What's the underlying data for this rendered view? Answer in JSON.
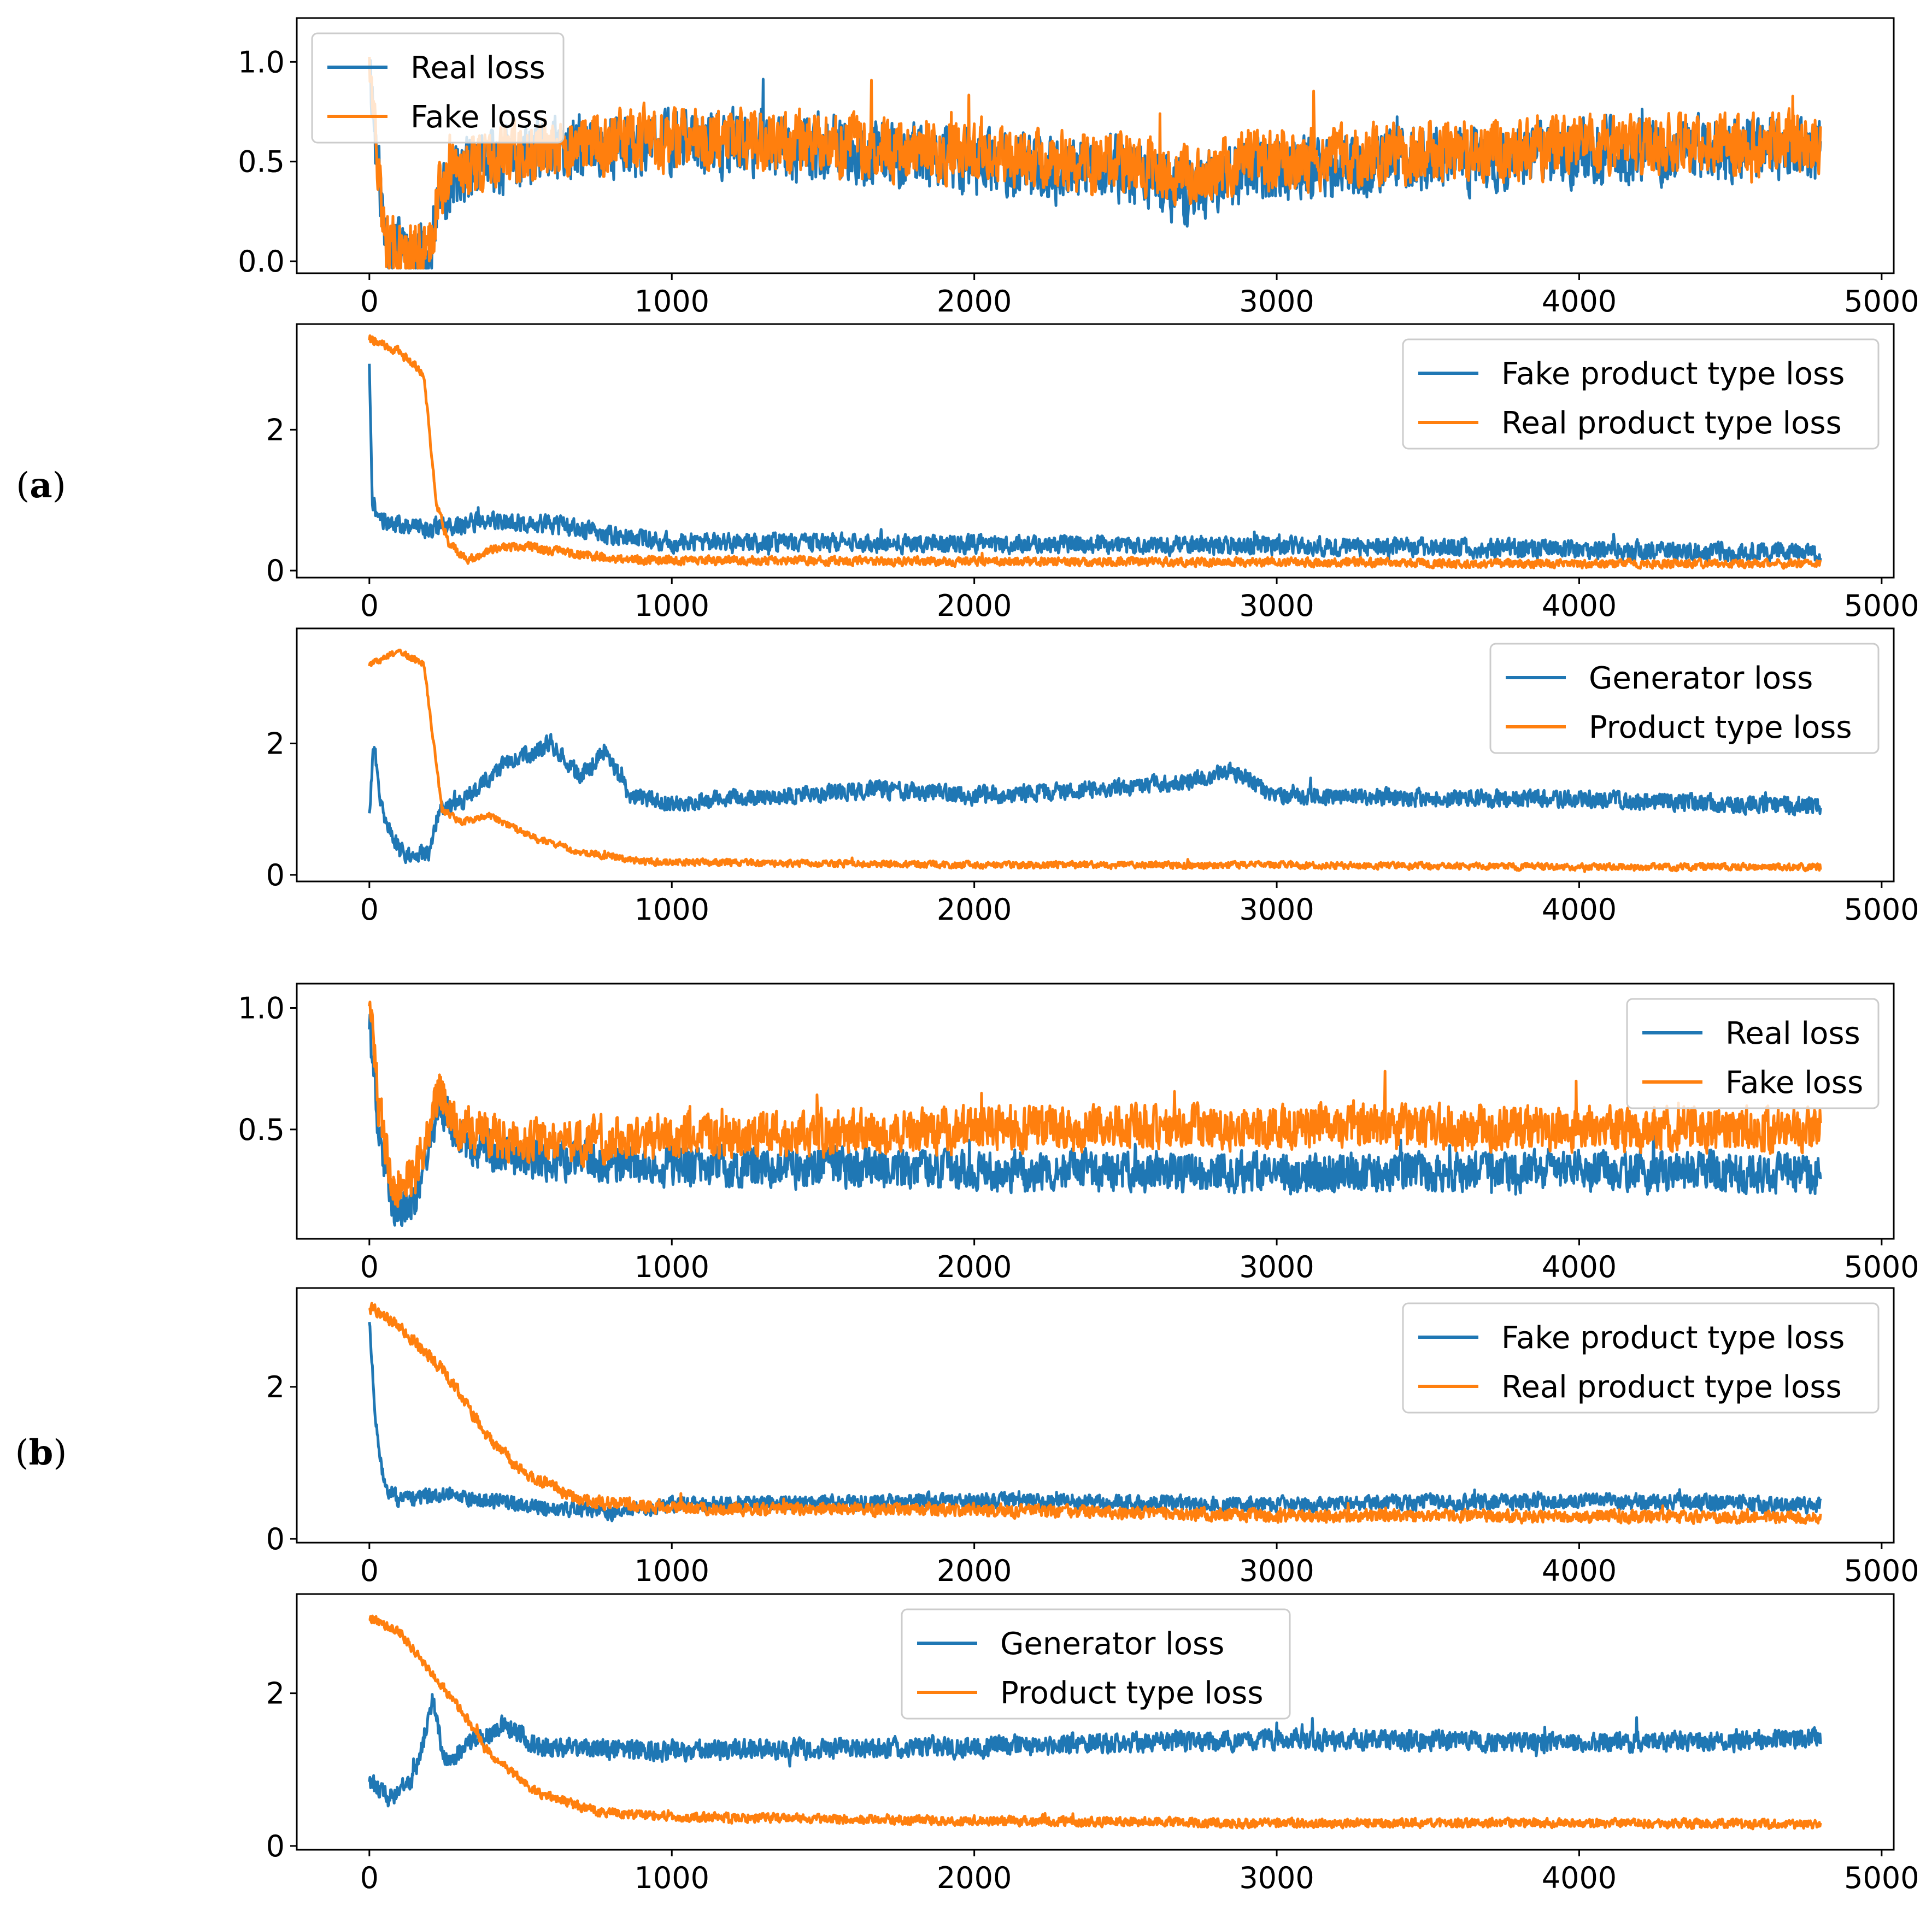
{
  "figure": {
    "panel_labels": [
      {
        "letter": "a",
        "open": "(",
        "close": ")"
      },
      {
        "letter": "b",
        "open": "(",
        "close": ")"
      }
    ],
    "colors": {
      "blue": "#1f77b4",
      "orange": "#ff7f0e",
      "axis": "#000000"
    }
  },
  "chart_data": [
    {
      "type": "line",
      "panel": "a",
      "xlim": [
        -240,
        5040
      ],
      "ylim": [
        -0.06,
        1.22
      ],
      "xticks": [
        0,
        1000,
        2000,
        3000,
        4000,
        5000
      ],
      "yticks": [
        0.0,
        0.5,
        1.0
      ],
      "ytick_decimals": 1,
      "legend": {
        "position": "upper-left"
      },
      "series": [
        {
          "name": "Real loss",
          "color": "#1f77b4",
          "n": 4800,
          "points": [
            [
              0,
              1.05
            ],
            [
              20,
              0.6
            ],
            [
              50,
              0.15
            ],
            [
              100,
              0.05
            ],
            [
              150,
              0.03
            ],
            [
              200,
              0.05
            ],
            [
              230,
              0.3
            ],
            [
              300,
              0.45
            ],
            [
              500,
              0.52
            ],
            [
              800,
              0.58
            ],
            [
              1200,
              0.6
            ],
            [
              1600,
              0.55
            ],
            [
              2000,
              0.5
            ],
            [
              2300,
              0.45
            ],
            [
              2500,
              0.45
            ],
            [
              2700,
              0.35
            ],
            [
              2900,
              0.45
            ],
            [
              3500,
              0.5
            ],
            [
              4000,
              0.55
            ],
            [
              4780,
              0.56
            ]
          ],
          "noise": 0.16,
          "seed": 11
        },
        {
          "name": "Fake loss",
          "color": "#ff7f0e",
          "n": 4800,
          "points": [
            [
              0,
              1.1
            ],
            [
              20,
              0.6
            ],
            [
              50,
              0.12
            ],
            [
              100,
              0.04
            ],
            [
              150,
              0.03
            ],
            [
              200,
              0.05
            ],
            [
              230,
              0.35
            ],
            [
              300,
              0.45
            ],
            [
              500,
              0.55
            ],
            [
              800,
              0.6
            ],
            [
              1200,
              0.62
            ],
            [
              1600,
              0.58
            ],
            [
              2000,
              0.55
            ],
            [
              2300,
              0.5
            ],
            [
              2500,
              0.5
            ],
            [
              2700,
              0.42
            ],
            [
              2900,
              0.5
            ],
            [
              3500,
              0.55
            ],
            [
              4000,
              0.58
            ],
            [
              4780,
              0.6
            ]
          ],
          "noise": 0.15,
          "seed": 12
        }
      ]
    },
    {
      "type": "line",
      "panel": "a",
      "xlim": [
        -240,
        5040
      ],
      "ylim": [
        -0.1,
        3.5
      ],
      "xticks": [
        0,
        1000,
        2000,
        3000,
        4000,
        5000
      ],
      "yticks": [
        0,
        2
      ],
      "ytick_decimals": 0,
      "legend": {
        "position": "upper-right"
      },
      "series": [
        {
          "name": "Fake product type loss",
          "color": "#1f77b4",
          "n": 4800,
          "points": [
            [
              0,
              3.0
            ],
            [
              10,
              1.0
            ],
            [
              30,
              0.75
            ],
            [
              100,
              0.65
            ],
            [
              200,
              0.6
            ],
            [
              400,
              0.7
            ],
            [
              600,
              0.65
            ],
            [
              800,
              0.5
            ],
            [
              1000,
              0.4
            ],
            [
              2000,
              0.38
            ],
            [
              3000,
              0.35
            ],
            [
              4000,
              0.3
            ],
            [
              4780,
              0.25
            ]
          ],
          "noise": 0.13,
          "seed": 21
        },
        {
          "name": "Real product type loss",
          "color": "#ff7f0e",
          "n": 4800,
          "points": [
            [
              0,
              3.3
            ],
            [
              100,
              3.1
            ],
            [
              180,
              2.8
            ],
            [
              220,
              1.0
            ],
            [
              260,
              0.4
            ],
            [
              320,
              0.15
            ],
            [
              400,
              0.3
            ],
            [
              500,
              0.35
            ],
            [
              700,
              0.22
            ],
            [
              900,
              0.15
            ],
            [
              2000,
              0.13
            ],
            [
              3000,
              0.12
            ],
            [
              4000,
              0.1
            ],
            [
              4780,
              0.1
            ]
          ],
          "noise": 0.06,
          "seed": 22
        }
      ]
    },
    {
      "type": "line",
      "panel": "a",
      "xlim": [
        -240,
        5040
      ],
      "ylim": [
        -0.1,
        3.75
      ],
      "xticks": [
        0,
        1000,
        2000,
        3000,
        4000,
        5000
      ],
      "yticks": [
        0,
        2
      ],
      "ytick_decimals": 0,
      "legend": {
        "position": "upper-right"
      },
      "series": [
        {
          "name": "Generator loss",
          "color": "#1f77b4",
          "n": 4800,
          "points": [
            [
              0,
              1.0
            ],
            [
              15,
              2.0
            ],
            [
              40,
              1.0
            ],
            [
              100,
              0.35
            ],
            [
              200,
              0.3
            ],
            [
              230,
              1.0
            ],
            [
              300,
              1.1
            ],
            [
              450,
              1.7
            ],
            [
              600,
              2.0
            ],
            [
              700,
              1.5
            ],
            [
              780,
              1.9
            ],
            [
              860,
              1.2
            ],
            [
              1000,
              1.1
            ],
            [
              1700,
              1.3
            ],
            [
              2000,
              1.2
            ],
            [
              2700,
              1.4
            ],
            [
              2850,
              1.6
            ],
            [
              3000,
              1.2
            ],
            [
              4000,
              1.15
            ],
            [
              4780,
              1.05
            ]
          ],
          "noise": 0.13,
          "seed": 31
        },
        {
          "name": "Product type loss",
          "color": "#ff7f0e",
          "n": 4800,
          "points": [
            [
              0,
              3.2
            ],
            [
              100,
              3.4
            ],
            [
              180,
              3.2
            ],
            [
              240,
              1.0
            ],
            [
              300,
              0.8
            ],
            [
              400,
              0.9
            ],
            [
              550,
              0.55
            ],
            [
              700,
              0.35
            ],
            [
              900,
              0.2
            ],
            [
              2000,
              0.15
            ],
            [
              3000,
              0.15
            ],
            [
              4000,
              0.12
            ],
            [
              4780,
              0.12
            ]
          ],
          "noise": 0.05,
          "seed": 32
        }
      ]
    },
    {
      "type": "line",
      "panel": "b",
      "xlim": [
        -240,
        5040
      ],
      "ylim": [
        0.05,
        1.1
      ],
      "xticks": [
        0,
        1000,
        2000,
        3000,
        4000,
        5000
      ],
      "yticks": [
        0.5,
        1.0
      ],
      "ytick_decimals": 1,
      "legend": {
        "position": "upper-right"
      },
      "series": [
        {
          "name": "Real loss",
          "color": "#1f77b4",
          "n": 4800,
          "points": [
            [
              0,
              0.95
            ],
            [
              30,
              0.5
            ],
            [
              80,
              0.15
            ],
            [
              150,
              0.2
            ],
            [
              230,
              0.6
            ],
            [
              300,
              0.45
            ],
            [
              500,
              0.38
            ],
            [
              1000,
              0.35
            ],
            [
              2000,
              0.33
            ],
            [
              3000,
              0.32
            ],
            [
              4000,
              0.33
            ],
            [
              4780,
              0.32
            ]
          ],
          "noise": 0.08,
          "seed": 41
        },
        {
          "name": "Fake loss",
          "color": "#ff7f0e",
          "n": 4800,
          "points": [
            [
              0,
              1.05
            ],
            [
              30,
              0.6
            ],
            [
              80,
              0.25
            ],
            [
              150,
              0.3
            ],
            [
              230,
              0.65
            ],
            [
              300,
              0.5
            ],
            [
              500,
              0.45
            ],
            [
              1000,
              0.47
            ],
            [
              2000,
              0.5
            ],
            [
              3000,
              0.52
            ],
            [
              4000,
              0.5
            ],
            [
              4780,
              0.5
            ]
          ],
          "noise": 0.09,
          "seed": 42
        }
      ]
    },
    {
      "type": "line",
      "panel": "b",
      "xlim": [
        -240,
        5040
      ],
      "ylim": [
        -0.05,
        3.3
      ],
      "xticks": [
        0,
        1000,
        2000,
        3000,
        4000,
        5000
      ],
      "yticks": [
        0,
        2
      ],
      "ytick_decimals": 0,
      "legend": {
        "position": "upper-right"
      },
      "series": [
        {
          "name": "Fake product type loss",
          "color": "#1f77b4",
          "n": 4800,
          "points": [
            [
              0,
              2.9
            ],
            [
              20,
              1.5
            ],
            [
              50,
              0.7
            ],
            [
              100,
              0.5
            ],
            [
              250,
              0.6
            ],
            [
              400,
              0.5
            ],
            [
              600,
              0.4
            ],
            [
              800,
              0.35
            ],
            [
              1000,
              0.45
            ],
            [
              2000,
              0.5
            ],
            [
              3000,
              0.45
            ],
            [
              4000,
              0.5
            ],
            [
              4780,
              0.45
            ]
          ],
          "noise": 0.1,
          "seed": 51
        },
        {
          "name": "Real product type loss",
          "color": "#ff7f0e",
          "n": 4800,
          "points": [
            [
              0,
              3.05
            ],
            [
              100,
              2.8
            ],
            [
              250,
              2.2
            ],
            [
              400,
              1.3
            ],
            [
              500,
              0.9
            ],
            [
              700,
              0.5
            ],
            [
              1000,
              0.4
            ],
            [
              2000,
              0.38
            ],
            [
              3000,
              0.3
            ],
            [
              4000,
              0.3
            ],
            [
              4780,
              0.28
            ]
          ],
          "noise": 0.08,
          "seed": 52
        }
      ]
    },
    {
      "type": "line",
      "panel": "b",
      "xlim": [
        -240,
        5040
      ],
      "ylim": [
        -0.05,
        3.3
      ],
      "xticks": [
        0,
        1000,
        2000,
        3000,
        4000,
        5000
      ],
      "yticks": [
        0,
        2
      ],
      "ytick_decimals": 0,
      "legend": {
        "position": "upper-center"
      },
      "series": [
        {
          "name": "Generator loss",
          "color": "#1f77b4",
          "n": 4800,
          "points": [
            [
              0,
              0.9
            ],
            [
              60,
              0.6
            ],
            [
              150,
              0.9
            ],
            [
              210,
              1.9
            ],
            [
              250,
              1.1
            ],
            [
              350,
              1.4
            ],
            [
              450,
              1.6
            ],
            [
              550,
              1.3
            ],
            [
              1000,
              1.25
            ],
            [
              2000,
              1.3
            ],
            [
              3000,
              1.4
            ],
            [
              4000,
              1.35
            ],
            [
              4780,
              1.4
            ]
          ],
          "noise": 0.13,
          "seed": 61
        },
        {
          "name": "Product type loss",
          "color": "#ff7f0e",
          "n": 4800,
          "points": [
            [
              0,
              3.0
            ],
            [
              100,
              2.8
            ],
            [
              200,
              2.3
            ],
            [
              300,
              1.8
            ],
            [
              400,
              1.2
            ],
            [
              550,
              0.7
            ],
            [
              750,
              0.45
            ],
            [
              1000,
              0.38
            ],
            [
              2000,
              0.33
            ],
            [
              3000,
              0.3
            ],
            [
              4000,
              0.3
            ],
            [
              4780,
              0.28
            ]
          ],
          "noise": 0.06,
          "seed": 62
        }
      ]
    }
  ]
}
